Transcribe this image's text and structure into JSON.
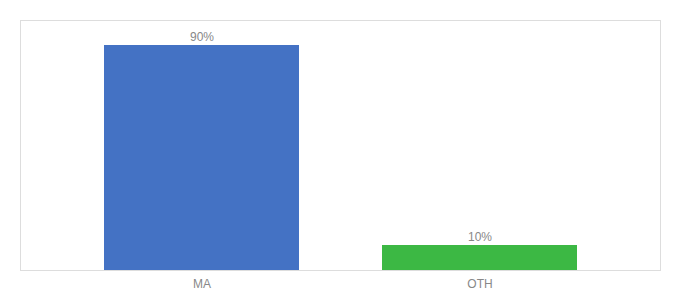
{
  "chart_data": {
    "type": "bar",
    "categories": [
      "MA",
      "OTH"
    ],
    "values": [
      90,
      10
    ],
    "colors": [
      "#4472c4",
      "#3cb844"
    ],
    "ylim": [
      0,
      100
    ],
    "data_labels": true,
    "value_labels": [
      "90%",
      "10%"
    ],
    "tick_labels": "x",
    "grid": false
  }
}
